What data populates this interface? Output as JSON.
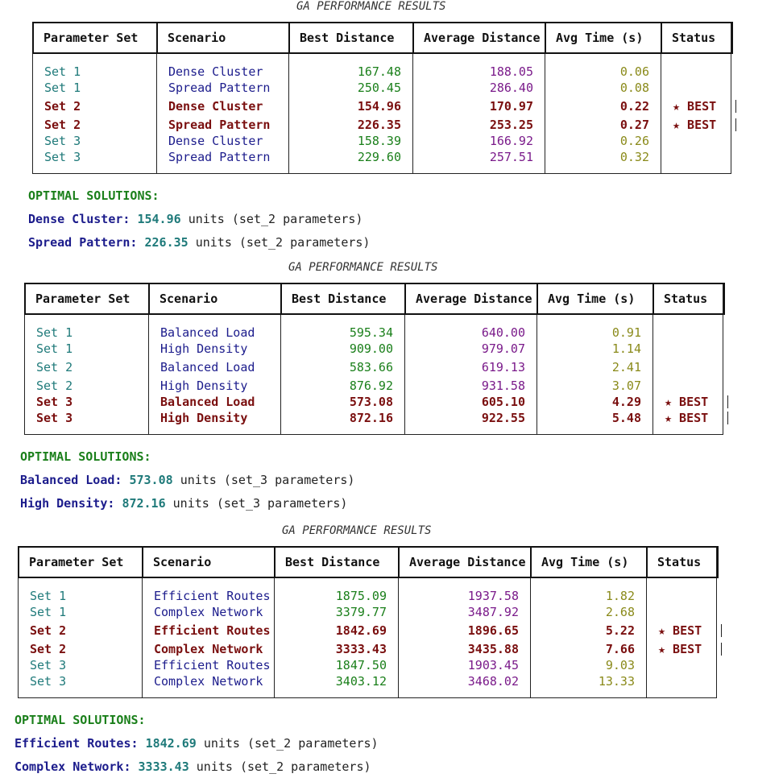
{
  "sections": [
    {
      "caption": "GA PERFORMANCE RESULTS",
      "headers": [
        "Parameter Set",
        "Scenario",
        "Best Distance",
        "Average Distance",
        "Avg Time (s)",
        "Status"
      ],
      "rows": [
        {
          "set": "Set 1",
          "scenario": "Dense Cluster",
          "best": "167.48",
          "avg": "188.05",
          "time": "0.06",
          "status": ""
        },
        {
          "set": "Set 1",
          "scenario": "Spread Pattern",
          "best": "250.45",
          "avg": "286.40",
          "time": "0.08",
          "status": ""
        },
        {
          "set": "Set 2",
          "scenario": "Dense Cluster",
          "best": "154.96",
          "avg": "170.97",
          "time": "0.22",
          "status": "★ BEST"
        },
        {
          "set": "Set 2",
          "scenario": "Spread Pattern",
          "best": "226.35",
          "avg": "253.25",
          "time": "0.27",
          "status": "★ BEST"
        },
        {
          "set": "Set 3",
          "scenario": "Dense Cluster",
          "best": "158.39",
          "avg": "166.92",
          "time": "0.26",
          "status": ""
        },
        {
          "set": "Set 3",
          "scenario": "Spread Pattern",
          "best": "229.60",
          "avg": "257.51",
          "time": "0.32",
          "status": ""
        }
      ],
      "optimal_title": "OPTIMAL SOLUTIONS:",
      "optimal": [
        {
          "label": "Dense Cluster:",
          "value": "154.96",
          "rest": "units (set_2 parameters)"
        },
        {
          "label": "Spread Pattern:",
          "value": "226.35",
          "rest": "units (set_2 parameters)"
        }
      ]
    },
    {
      "caption": "GA PERFORMANCE RESULTS",
      "headers": [
        "Parameter Set",
        "Scenario",
        "Best Distance",
        "Average Distance",
        "Avg Time (s)",
        "Status"
      ],
      "rows": [
        {
          "set": "Set 1",
          "scenario": "Balanced Load",
          "best": "595.34",
          "avg": "640.00",
          "time": "0.91",
          "status": ""
        },
        {
          "set": "Set 1",
          "scenario": "High Density",
          "best": "909.00",
          "avg": "979.07",
          "time": "1.14",
          "status": ""
        },
        {
          "set": "Set 2",
          "scenario": "Balanced Load",
          "best": "583.66",
          "avg": "619.13",
          "time": "2.41",
          "status": ""
        },
        {
          "set": "Set 2",
          "scenario": "High Density",
          "best": "876.92",
          "avg": "931.58",
          "time": "3.07",
          "status": ""
        },
        {
          "set": "Set 3",
          "scenario": "Balanced Load",
          "best": "573.08",
          "avg": "605.10",
          "time": "4.29",
          "status": "★ BEST"
        },
        {
          "set": "Set 3",
          "scenario": "High Density",
          "best": "872.16",
          "avg": "922.55",
          "time": "5.48",
          "status": "★ BEST"
        }
      ],
      "optimal_title": "OPTIMAL SOLUTIONS:",
      "optimal": [
        {
          "label": "Balanced Load:",
          "value": "573.08",
          "rest": "units (set_3 parameters)"
        },
        {
          "label": "High Density:",
          "value": "872.16",
          "rest": "units (set_3 parameters)"
        }
      ]
    },
    {
      "caption": "GA PERFORMANCE RESULTS",
      "headers": [
        "Parameter Set",
        "Scenario",
        "Best Distance",
        "Average Distance",
        "Avg Time (s)",
        "Status"
      ],
      "rows": [
        {
          "set": "Set 1",
          "scenario": "Efficient Routes",
          "best": "1875.09",
          "avg": "1937.58",
          "time": "1.82",
          "status": ""
        },
        {
          "set": "Set 1",
          "scenario": "Complex Network",
          "best": "3379.77",
          "avg": "3487.92",
          "time": "2.68",
          "status": ""
        },
        {
          "set": "Set 2",
          "scenario": "Efficient Routes",
          "best": "1842.69",
          "avg": "1896.65",
          "time": "5.22",
          "status": "★ BEST"
        },
        {
          "set": "Set 2",
          "scenario": "Complex Network",
          "best": "3333.43",
          "avg": "3435.88",
          "time": "7.66",
          "status": "★ BEST"
        },
        {
          "set": "Set 3",
          "scenario": "Efficient Routes",
          "best": "1847.50",
          "avg": "1903.45",
          "time": "9.03",
          "status": ""
        },
        {
          "set": "Set 3",
          "scenario": "Complex Network",
          "best": "3403.12",
          "avg": "3468.02",
          "time": "13.33",
          "status": ""
        }
      ],
      "optimal_title": "OPTIMAL SOLUTIONS:",
      "optimal": [
        {
          "label": "Efficient Routes:",
          "value": "1842.69",
          "rest": "units (set_2 parameters)"
        },
        {
          "label": "Complex Network:",
          "value": "3333.43",
          "rest": "units (set_2 parameters)"
        }
      ]
    }
  ]
}
